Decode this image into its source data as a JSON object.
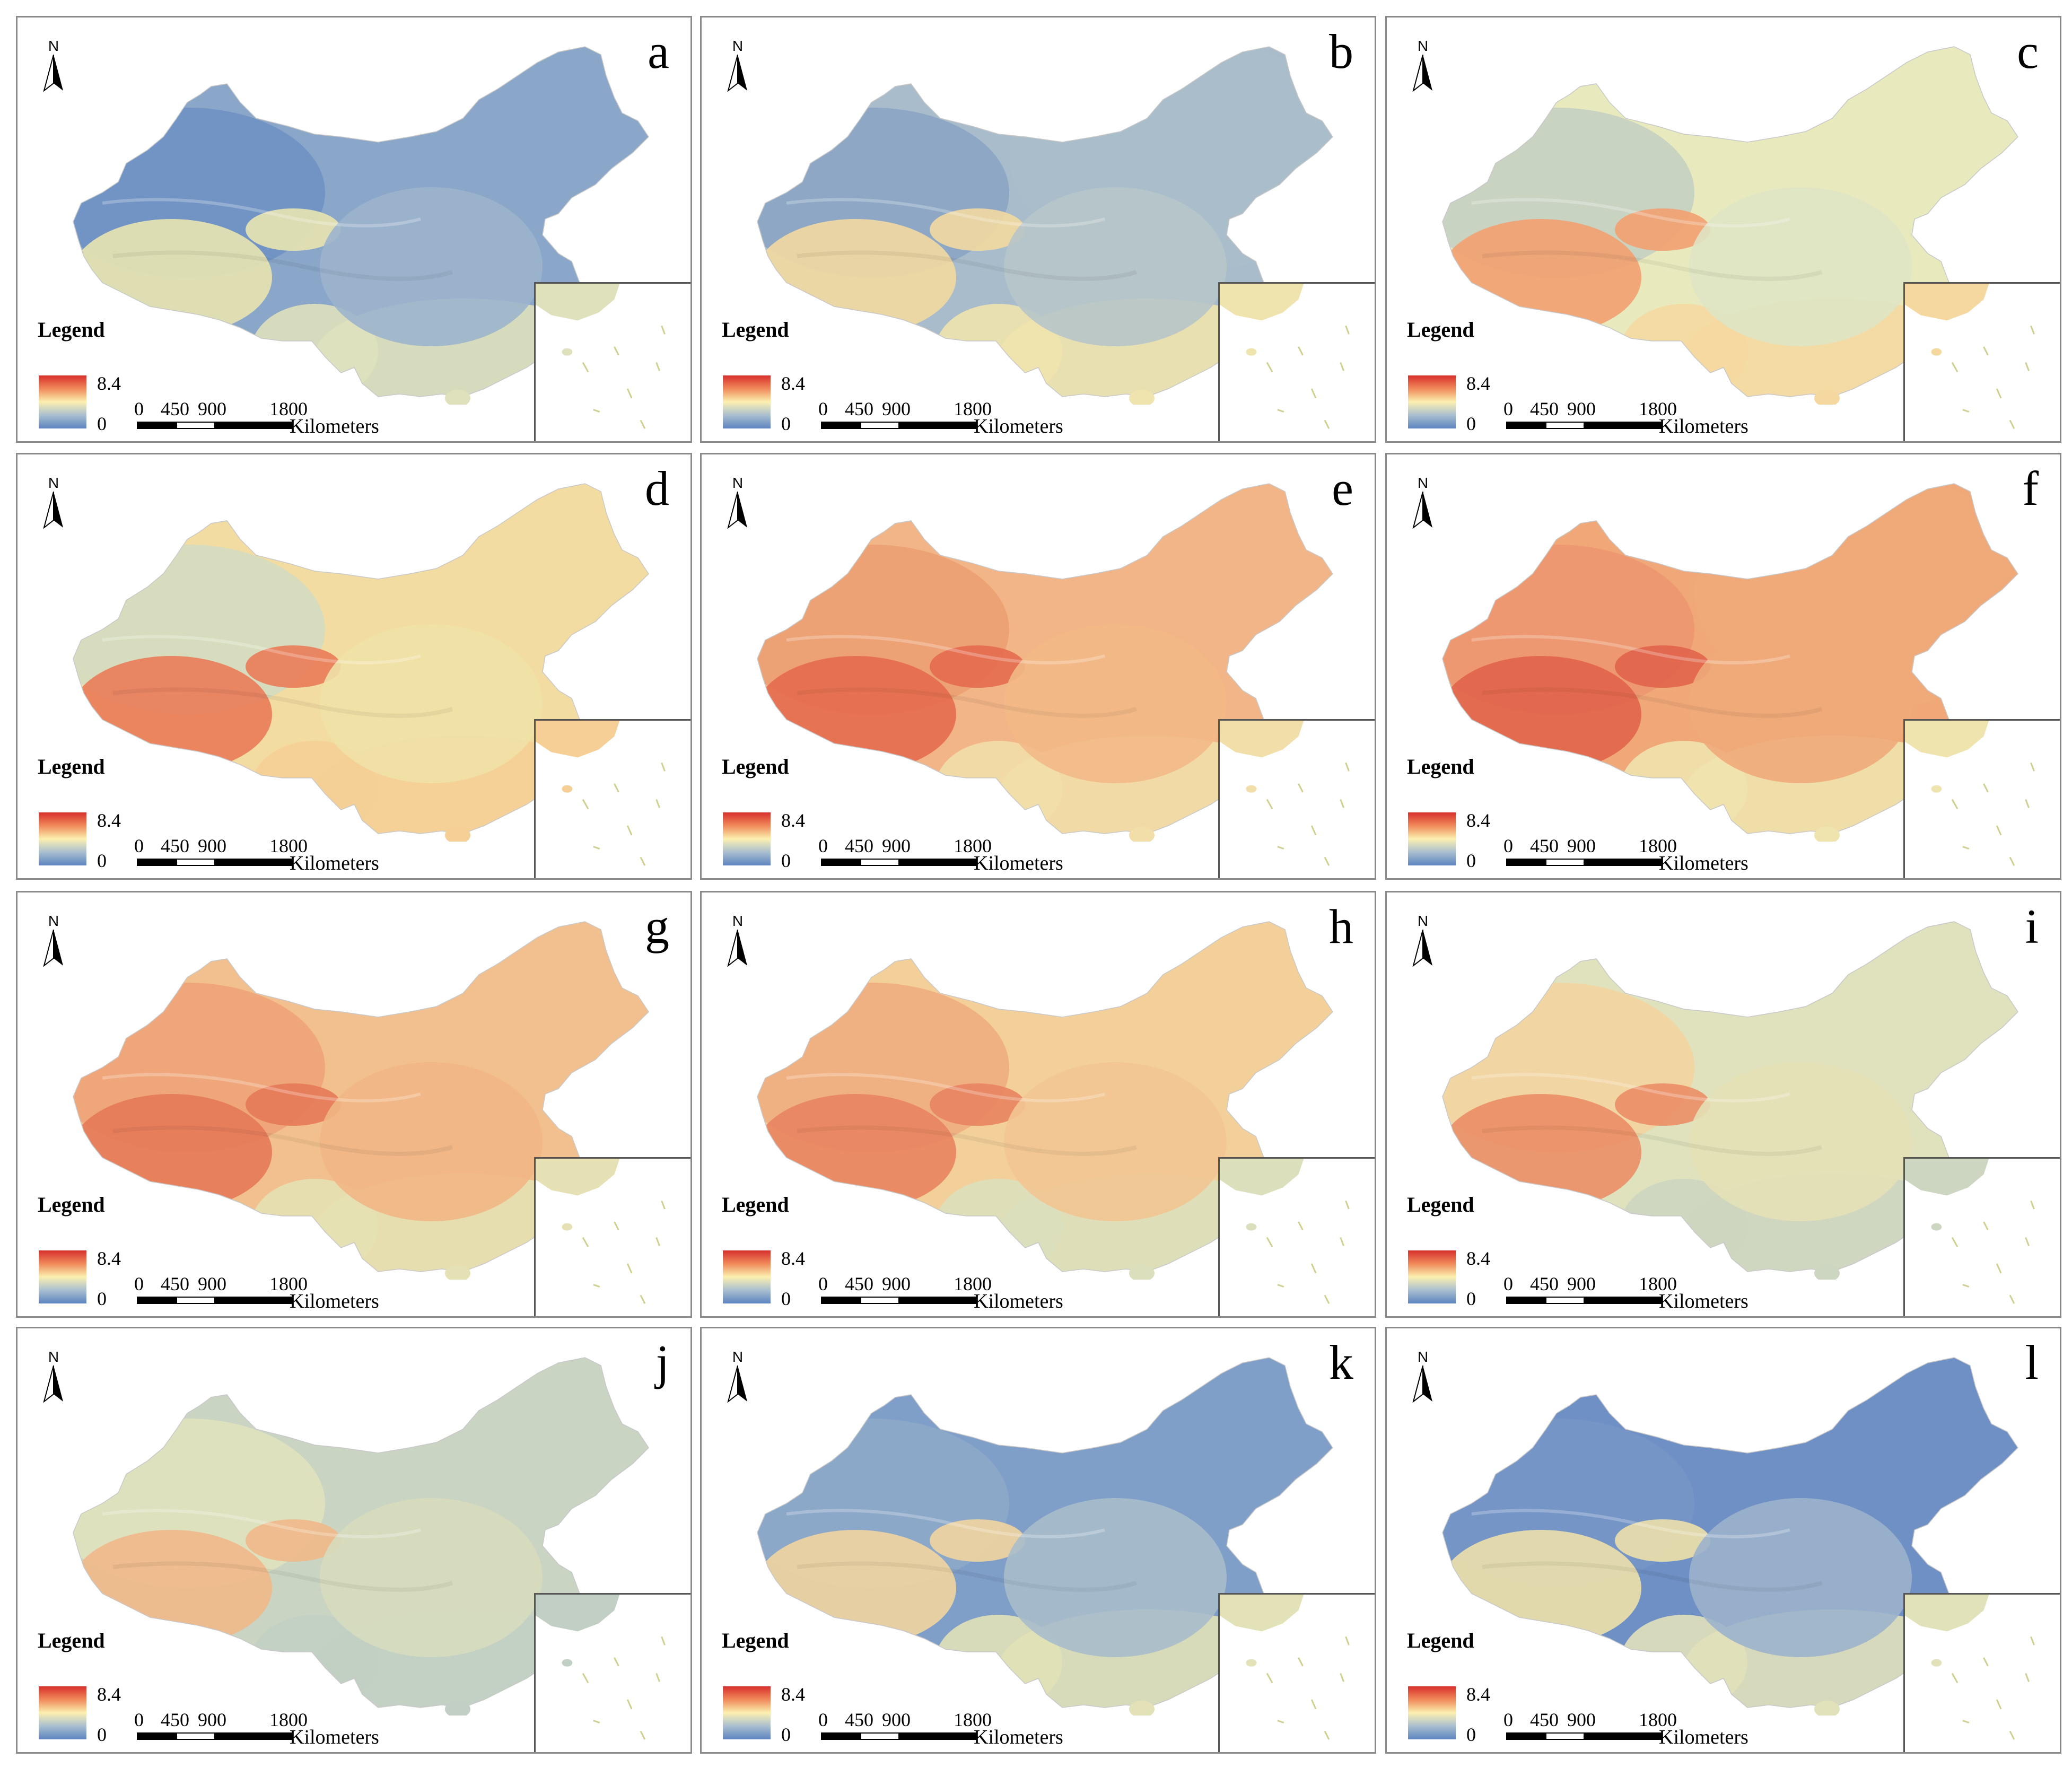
{
  "panels": [
    {
      "letter": "a",
      "colors": {
        "west": "#6f92c4",
        "center": "#9cb4cc",
        "south": "#dfe1bd",
        "tibet": "#e8e4b0",
        "north": "#8aa6c8"
      }
    },
    {
      "letter": "b",
      "colors": {
        "west": "#8aa4c4",
        "center": "#b7c5c9",
        "south": "#efe3ae",
        "tibet": "#f2d9a0",
        "north": "#a8bccb"
      }
    },
    {
      "letter": "c",
      "colors": {
        "west": "#c5d0c2",
        "center": "#dfe4c4",
        "south": "#f5d8a0",
        "tibet": "#f2a070",
        "north": "#e8e9bd"
      }
    },
    {
      "letter": "d",
      "colors": {
        "west": "#d3dcc0",
        "center": "#f0e1a6",
        "south": "#f5cf96",
        "tibet": "#ea7b58",
        "north": "#f3dca2"
      }
    },
    {
      "letter": "e",
      "colors": {
        "west": "#eca074",
        "center": "#f2b987",
        "south": "#f1dea8",
        "tibet": "#e46b4f",
        "north": "#f2b587"
      }
    },
    {
      "letter": "f",
      "colors": {
        "west": "#ec9670",
        "center": "#f0aa7a",
        "south": "#efe3ae",
        "tibet": "#e0644b",
        "north": "#f0a879"
      }
    },
    {
      "letter": "g",
      "colors": {
        "west": "#eea378",
        "center": "#f1b685",
        "south": "#e5e1b4",
        "tibet": "#e67a58",
        "north": "#f2c08e"
      }
    },
    {
      "letter": "h",
      "colors": {
        "west": "#f0ad7f",
        "center": "#f2c592",
        "south": "#dcdfbc",
        "tibet": "#e88460",
        "north": "#f3cf9a"
      }
    },
    {
      "letter": "i",
      "colors": {
        "west": "#f3d49f",
        "center": "#e4e1b6",
        "south": "#cdd6c0",
        "tibet": "#eb8e66",
        "north": "#dfe2bd"
      }
    },
    {
      "letter": "j",
      "colors": {
        "west": "#dfe2bd",
        "center": "#d7dcbe",
        "south": "#c2cfc4",
        "tibet": "#efb888",
        "north": "#c9d4c3"
      }
    },
    {
      "letter": "k",
      "colors": {
        "west": "#8ea9c8",
        "center": "#a8bccb",
        "south": "#e2e1b7",
        "tibet": "#f1d49e",
        "north": "#7f9ec8"
      }
    },
    {
      "letter": "l",
      "colors": {
        "west": "#7596c6",
        "center": "#9cb3cc",
        "south": "#e1e1ba",
        "tibet": "#ede0aa",
        "north": "#6f90c4"
      }
    }
  ],
  "legend": {
    "title": "Legend",
    "max": "8.4",
    "min": "0"
  },
  "scale": {
    "ticks": [
      "0",
      "450",
      "900",
      "1800"
    ],
    "unit": "Kilometers"
  },
  "north_label": "N"
}
